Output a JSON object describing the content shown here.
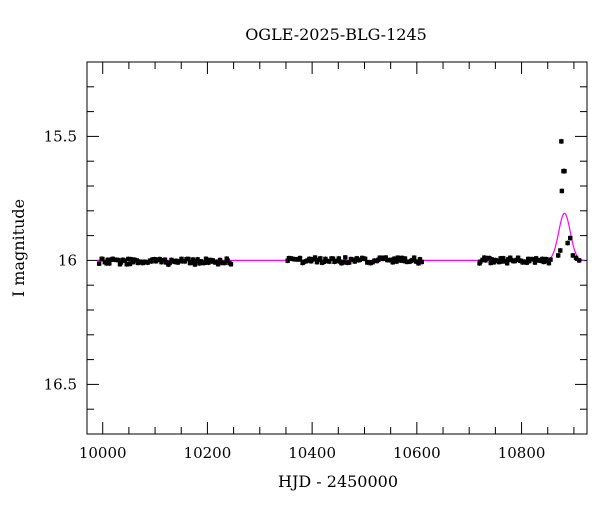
{
  "chart_data": {
    "type": "scatter",
    "title": "OGLE-2025-BLG-1245",
    "xlabel": "HJD - 2450000",
    "ylabel": "I magnitude",
    "xlim": [
      9970,
      10925
    ],
    "ylim": [
      16.7,
      15.2
    ],
    "y_inverted": true,
    "x_ticks": [
      10000,
      10200,
      10400,
      10600,
      10800
    ],
    "x_tick_labels": [
      "10000",
      "10200",
      "10400",
      "10600",
      "10800"
    ],
    "y_ticks": [
      15.5,
      16,
      16.5
    ],
    "y_tick_labels": [
      "15.5",
      "16",
      "16.5"
    ],
    "grid": false,
    "legend": "none",
    "colors": {
      "data": "#000000",
      "model": "#ff00ff"
    },
    "series": [
      {
        "kind": "points",
        "segments": [
          {
            "x_from": 9993,
            "x_to": 10248,
            "count": 80,
            "mag_mean": 16.005,
            "mag_scatter": 0.012,
            "mag_err": 0.01
          },
          {
            "x_from": 10352,
            "x_to": 10612,
            "count": 75,
            "mag_mean": 16.0,
            "mag_scatter": 0.012,
            "mag_err": 0.01
          },
          {
            "x_from": 10718,
            "x_to": 10858,
            "count": 45,
            "mag_mean": 16.0,
            "mag_scatter": 0.012,
            "mag_err": 0.01
          }
        ],
        "event_points": [
          {
            "x": 10870,
            "y": 15.98
          },
          {
            "x": 10874,
            "y": 15.96
          },
          {
            "x": 10876,
            "y": 15.52
          },
          {
            "x": 10877,
            "y": 15.72
          },
          {
            "x": 10880,
            "y": 15.64
          },
          {
            "x": 10882,
            "y": 15.64
          },
          {
            "x": 10888,
            "y": 15.93
          },
          {
            "x": 10893,
            "y": 15.91
          },
          {
            "x": 10898,
            "y": 15.98
          },
          {
            "x": 10904,
            "y": 15.99
          },
          {
            "x": 10910,
            "y": 16.0
          }
        ]
      },
      {
        "kind": "model",
        "baseline_mag": 16.0,
        "peak_x": 10882,
        "peak_mag": 15.81,
        "width": 11
      }
    ]
  }
}
